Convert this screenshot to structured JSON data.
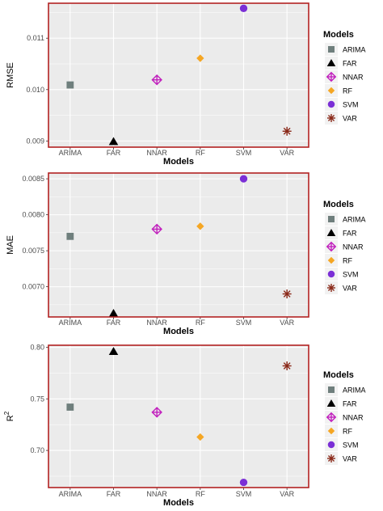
{
  "chart_data": [
    {
      "type": "scatter",
      "xlabel": "Models",
      "ylabel": "RMSE",
      "ylabel_sup": "",
      "categories": [
        "ARIMA",
        "FAR",
        "NNAR",
        "RF",
        "SVM",
        "VAR"
      ],
      "values": [
        0.01009,
        0.00899,
        0.01019,
        0.01061,
        0.01158,
        0.00919
      ],
      "ylim": [
        0.00888,
        0.01168
      ],
      "yticks": [
        0.009,
        0.01,
        0.011
      ],
      "ytick_labels": [
        "0.009",
        "0.010",
        "0.011"
      ],
      "legend_title": "Models",
      "legend_placement": "right",
      "grid": true
    },
    {
      "type": "scatter",
      "xlabel": "Models",
      "ylabel": "MAE",
      "ylabel_sup": "",
      "categories": [
        "ARIMA",
        "FAR",
        "NNAR",
        "RF",
        "SVM",
        "VAR"
      ],
      "values": [
        0.0077,
        0.00663,
        0.0078,
        0.00784,
        0.0085,
        0.0069
      ],
      "ylim": [
        0.00658,
        0.00858
      ],
      "yticks": [
        0.007,
        0.0075,
        0.008,
        0.0085
      ],
      "ytick_labels": [
        "0.0070",
        "0.0075",
        "0.0080",
        "0.0085"
      ],
      "legend_title": "Models",
      "legend_placement": "right",
      "grid": true
    },
    {
      "type": "scatter",
      "xlabel": "Models",
      "ylabel": "R",
      "ylabel_sup": "2",
      "categories": [
        "ARIMA",
        "FAR",
        "NNAR",
        "RF",
        "SVM",
        "VAR"
      ],
      "values": [
        0.742,
        0.796,
        0.737,
        0.713,
        0.669,
        0.782
      ],
      "ylim": [
        0.664,
        0.802
      ],
      "yticks": [
        0.7,
        0.75,
        0.8
      ],
      "ytick_labels": [
        "0.70",
        "0.75",
        "0.80"
      ],
      "legend_title": "Models",
      "legend_placement": "right",
      "grid": true
    }
  ],
  "legend_items": [
    {
      "label": "ARIMA",
      "shape": "square",
      "color": "#6f7f7d"
    },
    {
      "label": "FAR",
      "shape": "triangle",
      "color": "#000000"
    },
    {
      "label": "NNAR",
      "shape": "diamond-plus",
      "color": "#c11fbd"
    },
    {
      "label": "RF",
      "shape": "diamond",
      "color": "#f5a623"
    },
    {
      "label": "SVM",
      "shape": "circle",
      "color": "#7b2fd6"
    },
    {
      "label": "VAR",
      "shape": "asterisk",
      "color": "#8b2a1a"
    }
  ],
  "style": {
    "panel_bg": "#ebebeb",
    "panel_border": "#b22222",
    "grid_color": "#ffffff"
  }
}
